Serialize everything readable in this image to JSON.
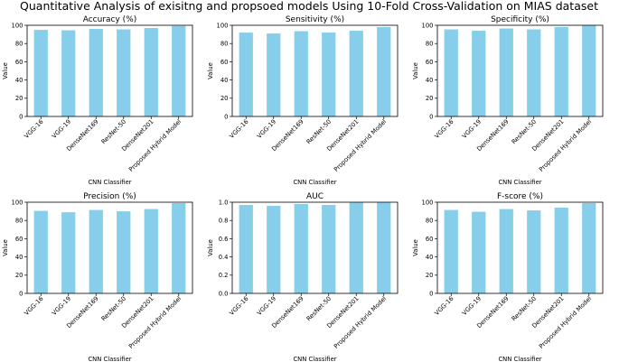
{
  "suptitle": "Quantitative Analysis of exisitng and propsoed models Using 10-Fold Cross-Validation on MIAS dataset",
  "bar_color": "#87ceeb",
  "chart_data": [
    {
      "type": "bar",
      "title": "Accuracy (%)",
      "xlabel": "CNN Classifier",
      "ylabel": "Value",
      "categories": [
        "VGG-16",
        "VGG-19",
        "DenseNet169",
        "ResNet-50",
        "DenseNet201",
        "Proposed Hybrid Model"
      ],
      "values": [
        95,
        94.5,
        96,
        95.5,
        97,
        99.3
      ],
      "ylim": [
        0,
        100
      ],
      "yticks": [
        0,
        20,
        40,
        60,
        80,
        100
      ],
      "ytick_labels": [
        "0",
        "20",
        "40",
        "60",
        "80",
        "100"
      ]
    },
    {
      "type": "bar",
      "title": "Sensitivity (%)",
      "xlabel": "CNN Classifier",
      "ylabel": "Value",
      "categories": [
        "VGG-16",
        "VGG-19",
        "DenseNet169",
        "ResNet-50",
        "DenseNet201",
        "Proposed Hybrid Model"
      ],
      "values": [
        92,
        91,
        93.5,
        92,
        94,
        98
      ],
      "ylim": [
        0,
        100
      ],
      "yticks": [
        0,
        20,
        40,
        60,
        80,
        100
      ],
      "ytick_labels": [
        "0",
        "20",
        "40",
        "60",
        "80",
        "100"
      ]
    },
    {
      "type": "bar",
      "title": "Specificity (%)",
      "xlabel": "CNN Classifier",
      "ylabel": "Value",
      "categories": [
        "VGG-16",
        "VGG-19",
        "DenseNet169",
        "ResNet-50",
        "DenseNet201",
        "Proposed Hybrid Model"
      ],
      "values": [
        95.5,
        94,
        96.5,
        95.5,
        98,
        99.8
      ],
      "ylim": [
        0,
        100
      ],
      "yticks": [
        0,
        20,
        40,
        60,
        80,
        100
      ],
      "ytick_labels": [
        "0",
        "20",
        "40",
        "60",
        "80",
        "100"
      ]
    },
    {
      "type": "bar",
      "title": "Precision (%)",
      "xlabel": "CNN Classifier",
      "ylabel": "Value",
      "categories": [
        "VGG-16",
        "VGG-19",
        "DenseNet169",
        "ResNet-50",
        "DenseNet201",
        "Proposed Hybrid Model"
      ],
      "values": [
        90.5,
        89,
        91.5,
        90,
        92.5,
        99
      ],
      "ylim": [
        0,
        100
      ],
      "yticks": [
        0,
        20,
        40,
        60,
        80,
        100
      ],
      "ytick_labels": [
        "0",
        "20",
        "40",
        "60",
        "80",
        "100"
      ]
    },
    {
      "type": "bar",
      "title": "AUC",
      "xlabel": "CNN Classifier",
      "ylabel": "Value",
      "categories": [
        "VGG-16",
        "VGG-19",
        "DenseNet169",
        "ResNet-50",
        "DenseNet201",
        "Proposed Hybrid Model"
      ],
      "values": [
        0.97,
        0.96,
        0.98,
        0.97,
        0.995,
        0.998
      ],
      "ylim": [
        0,
        1.0
      ],
      "yticks": [
        0,
        0.2,
        0.4,
        0.6,
        0.8,
        1.0
      ],
      "ytick_labels": [
        "0.0",
        "0.2",
        "0.4",
        "0.6",
        "0.8",
        "1.0"
      ]
    },
    {
      "type": "bar",
      "title": "F-score (%)",
      "xlabel": "CNN Classifier",
      "ylabel": "Value",
      "categories": [
        "VGG-16",
        "VGG-19",
        "DenseNet169",
        "ResNet-50",
        "DenseNet201",
        "Proposed Hybrid Model"
      ],
      "values": [
        91.5,
        89.5,
        92.5,
        91,
        94,
        99
      ],
      "ylim": [
        0,
        100
      ],
      "yticks": [
        0,
        20,
        40,
        60,
        80,
        100
      ],
      "ytick_labels": [
        "0",
        "20",
        "40",
        "60",
        "80",
        "100"
      ]
    }
  ]
}
